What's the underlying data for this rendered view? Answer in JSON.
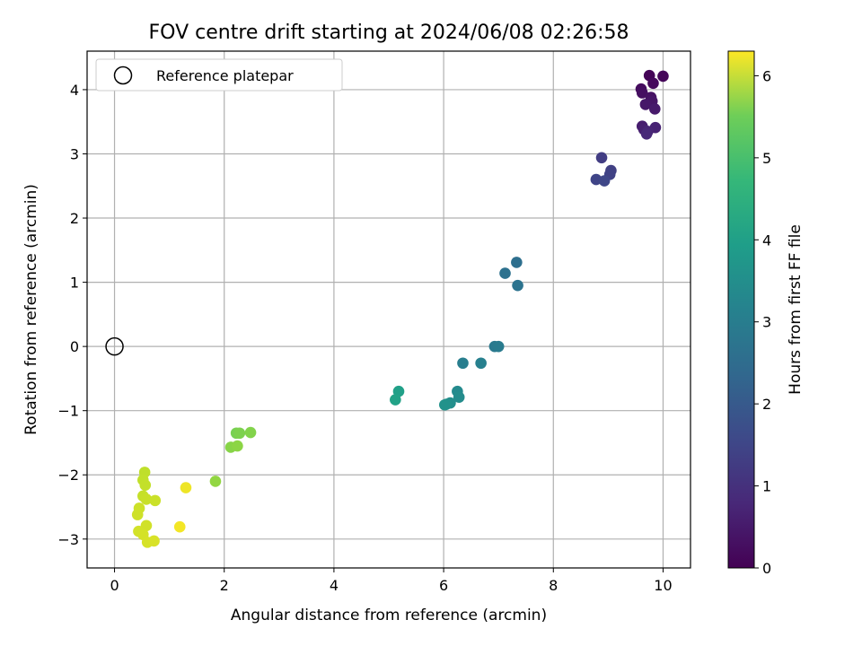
{
  "chart_data": {
    "type": "scatter",
    "title": "FOV centre drift starting at 2024/06/08 02:26:58",
    "xlabel": "Angular distance from reference (arcmin)",
    "ylabel": "Rotation from reference (arcmin)",
    "xlim": [
      -0.5,
      10.5
    ],
    "ylim": [
      -3.45,
      4.6
    ],
    "xticks": [
      0,
      2,
      4,
      6,
      8,
      10
    ],
    "yticks": [
      -3,
      -2,
      -1,
      0,
      1,
      2,
      3,
      4
    ],
    "grid": true,
    "legend": {
      "placement": "top-left",
      "label": "Reference platepar"
    },
    "reference_point": {
      "x": 0,
      "y": 0
    },
    "colorbar": {
      "label": "Hours from first FF file",
      "range": [
        0,
        6.3
      ],
      "ticks": [
        0,
        1,
        2,
        3,
        4,
        5,
        6
      ],
      "colormap": "viridis"
    },
    "points": [
      {
        "x": 9.75,
        "y": 4.22,
        "t": 0.05
      },
      {
        "x": 10.0,
        "y": 4.21,
        "t": 0.1
      },
      {
        "x": 9.82,
        "y": 4.1,
        "t": 0.15
      },
      {
        "x": 9.6,
        "y": 4.01,
        "t": 0.2
      },
      {
        "x": 9.62,
        "y": 3.95,
        "t": 0.25
      },
      {
        "x": 9.78,
        "y": 3.88,
        "t": 0.3
      },
      {
        "x": 9.8,
        "y": 3.82,
        "t": 0.35
      },
      {
        "x": 9.68,
        "y": 3.77,
        "t": 0.4
      },
      {
        "x": 9.85,
        "y": 3.7,
        "t": 0.45
      },
      {
        "x": 9.62,
        "y": 3.43,
        "t": 0.5
      },
      {
        "x": 9.65,
        "y": 3.38,
        "t": 0.55
      },
      {
        "x": 9.86,
        "y": 3.41,
        "t": 0.6
      },
      {
        "x": 9.72,
        "y": 3.35,
        "t": 0.65
      },
      {
        "x": 9.7,
        "y": 3.31,
        "t": 0.7
      },
      {
        "x": 8.88,
        "y": 2.94,
        "t": 1.15
      },
      {
        "x": 9.05,
        "y": 2.74,
        "t": 1.2
      },
      {
        "x": 9.03,
        "y": 2.68,
        "t": 1.25
      },
      {
        "x": 8.78,
        "y": 2.6,
        "t": 1.3
      },
      {
        "x": 8.93,
        "y": 2.58,
        "t": 1.35
      },
      {
        "x": 7.33,
        "y": 1.31,
        "t": 2.3
      },
      {
        "x": 7.12,
        "y": 1.14,
        "t": 2.35
      },
      {
        "x": 7.35,
        "y": 0.95,
        "t": 2.4
      },
      {
        "x": 6.93,
        "y": 0.0,
        "t": 2.55
      },
      {
        "x": 7.0,
        "y": 0.0,
        "t": 2.6
      },
      {
        "x": 6.35,
        "y": -0.26,
        "t": 2.7
      },
      {
        "x": 6.68,
        "y": -0.26,
        "t": 2.75
      },
      {
        "x": 6.25,
        "y": -0.7,
        "t": 3.0
      },
      {
        "x": 6.28,
        "y": -0.79,
        "t": 3.05
      },
      {
        "x": 6.12,
        "y": -0.88,
        "t": 3.1
      },
      {
        "x": 6.05,
        "y": -0.9,
        "t": 3.15
      },
      {
        "x": 6.02,
        "y": -0.91,
        "t": 3.2
      },
      {
        "x": 5.18,
        "y": -0.7,
        "t": 3.55
      },
      {
        "x": 5.12,
        "y": -0.83,
        "t": 3.6
      },
      {
        "x": 2.22,
        "y": -1.35,
        "t": 5.0
      },
      {
        "x": 2.28,
        "y": -1.35,
        "t": 5.05
      },
      {
        "x": 2.48,
        "y": -1.34,
        "t": 5.1
      },
      {
        "x": 2.12,
        "y": -1.57,
        "t": 5.15
      },
      {
        "x": 2.24,
        "y": -1.55,
        "t": 5.2
      },
      {
        "x": 1.84,
        "y": -2.1,
        "t": 5.25
      },
      {
        "x": 0.55,
        "y": -1.96,
        "t": 5.7
      },
      {
        "x": 0.52,
        "y": -2.08,
        "t": 5.72
      },
      {
        "x": 0.56,
        "y": -2.16,
        "t": 5.74
      },
      {
        "x": 0.52,
        "y": -2.33,
        "t": 5.76
      },
      {
        "x": 0.58,
        "y": -2.38,
        "t": 5.78
      },
      {
        "x": 0.74,
        "y": -2.4,
        "t": 5.8
      },
      {
        "x": 0.45,
        "y": -2.52,
        "t": 5.82
      },
      {
        "x": 0.42,
        "y": -2.62,
        "t": 5.84
      },
      {
        "x": 0.58,
        "y": -2.79,
        "t": 5.86
      },
      {
        "x": 0.44,
        "y": -2.88,
        "t": 5.88
      },
      {
        "x": 0.52,
        "y": -2.93,
        "t": 5.9
      },
      {
        "x": 0.6,
        "y": -3.05,
        "t": 5.92
      },
      {
        "x": 0.72,
        "y": -3.03,
        "t": 5.94
      },
      {
        "x": 1.3,
        "y": -2.2,
        "t": 6.15
      },
      {
        "x": 1.19,
        "y": -2.81,
        "t": 6.2
      }
    ]
  }
}
